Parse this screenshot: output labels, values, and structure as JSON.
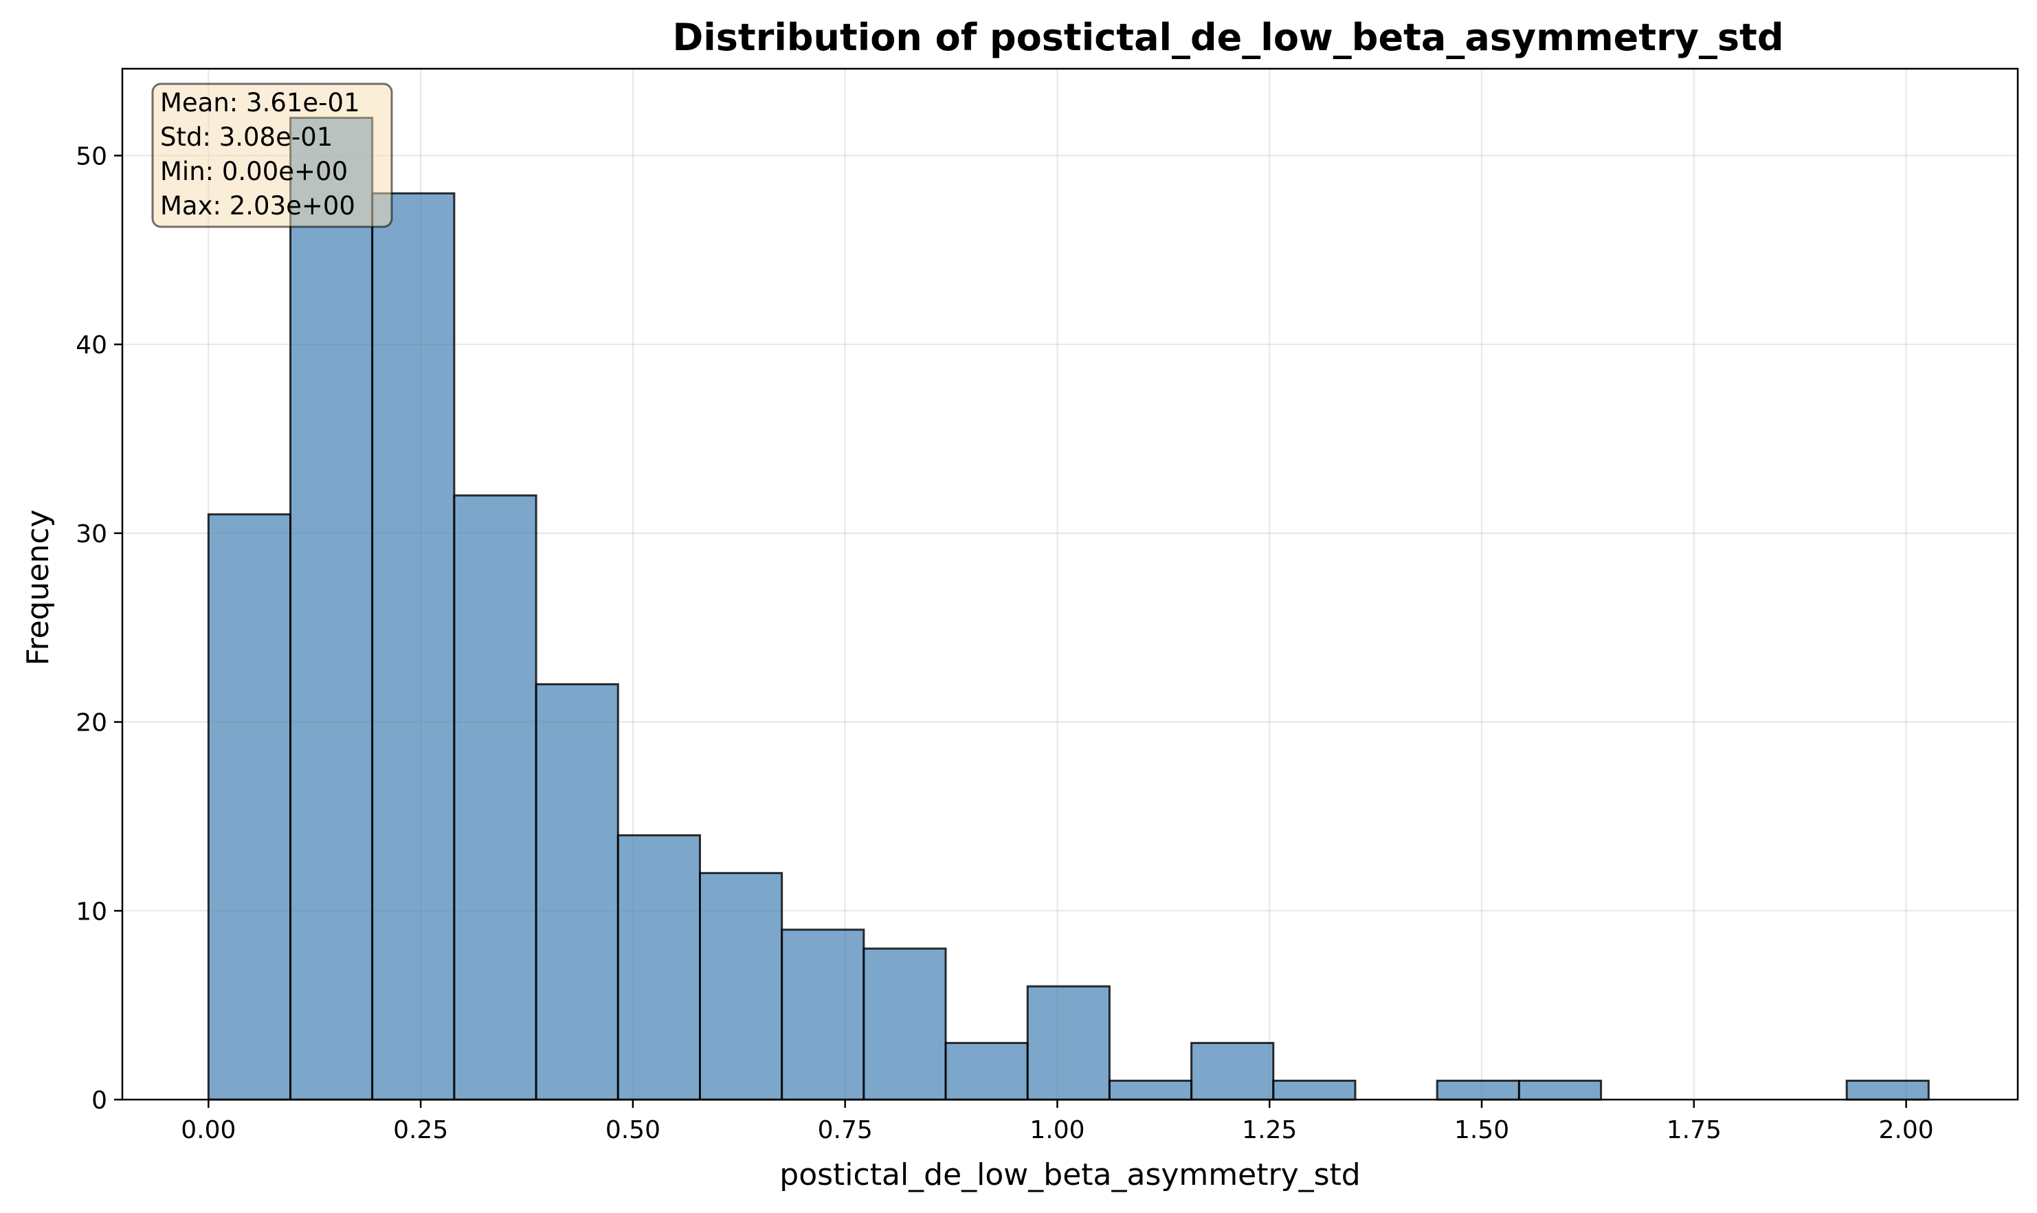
{
  "chart_data": {
    "type": "bar",
    "title": "Distribution of postictal_de_low_beta_asymmetry_std",
    "xlabel": "postictal_de_low_beta_asymmetry_std",
    "ylabel": "Frequency",
    "xlim": [
      -0.1015,
      2.1315
    ],
    "ylim": [
      0,
      54.6
    ],
    "x_ticks": [
      0.0,
      0.25,
      0.5,
      0.75,
      1.0,
      1.25,
      1.5,
      1.75,
      2.0
    ],
    "x_tick_labels": [
      "0.00",
      "0.25",
      "0.50",
      "0.75",
      "1.00",
      "1.25",
      "1.50",
      "1.75",
      "2.00"
    ],
    "y_ticks": [
      0,
      10,
      20,
      30,
      40,
      50
    ],
    "y_tick_labels": [
      "0",
      "10",
      "20",
      "30",
      "40",
      "50"
    ],
    "bin_edges": [
      0.0,
      0.0965,
      0.193,
      0.2895,
      0.386,
      0.4825,
      0.579,
      0.6755,
      0.772,
      0.8685,
      0.965,
      1.0615,
      1.158,
      1.2545,
      1.351,
      1.4475,
      1.544,
      1.6405,
      1.737,
      1.8335,
      1.93,
      2.0265
    ],
    "values": [
      31,
      52,
      48,
      32,
      22,
      14,
      12,
      9,
      8,
      3,
      6,
      1,
      3,
      1,
      0,
      1,
      1,
      0,
      0,
      0,
      1
    ],
    "bar_color": "#4682b4",
    "bar_opacity": 0.7,
    "edge_color": "#000000",
    "grid": true,
    "legend": "none",
    "stats_box": {
      "position": "top-left",
      "lines": [
        "Mean: 3.61e-01",
        "Std: 3.08e-01",
        "Min: 0.00e+00",
        "Max: 2.03e+00"
      ],
      "background": "#f5deb3"
    }
  }
}
